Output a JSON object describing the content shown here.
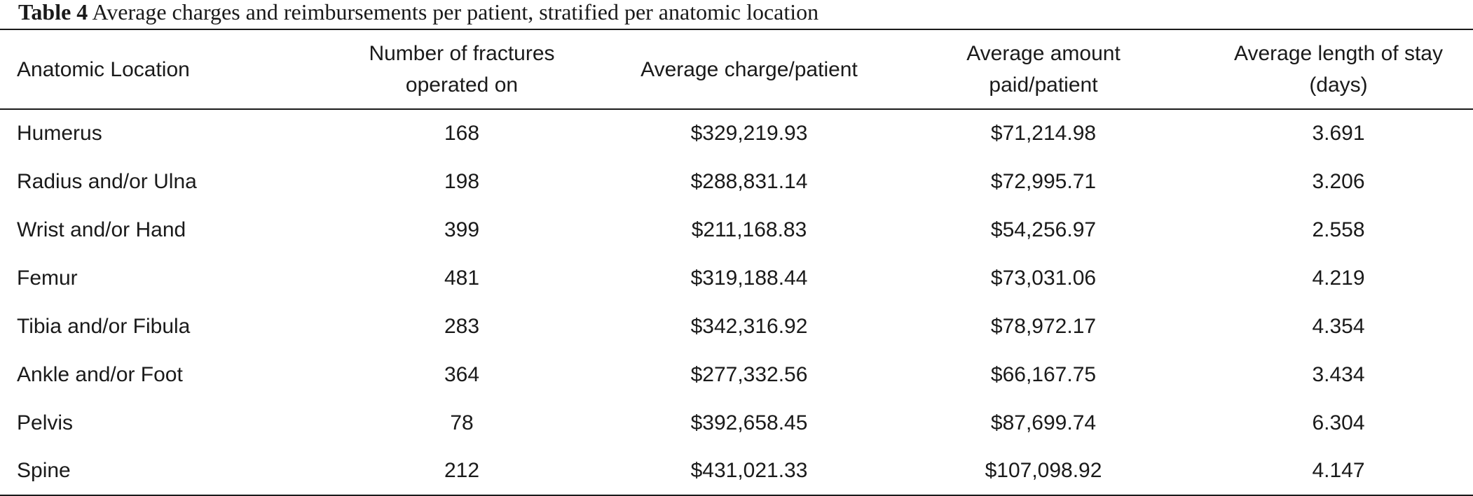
{
  "caption": {
    "label": "Table 4",
    "text": "Average charges and reimbursements per patient, stratified per anatomic location"
  },
  "table": {
    "headers": [
      {
        "line1": "Anatomic Location",
        "line2": ""
      },
      {
        "line1": "Number of fractures",
        "line2": "operated on"
      },
      {
        "line1": "Average charge/patient",
        "line2": ""
      },
      {
        "line1": "Average amount",
        "line2": "paid/patient"
      },
      {
        "line1": "Average length of stay",
        "line2": "(days)"
      }
    ],
    "rows": [
      [
        "Humerus",
        "168",
        "$329,219.93",
        "$71,214.98",
        "3.691"
      ],
      [
        "Radius and/or Ulna",
        "198",
        "$288,831.14",
        "$72,995.71",
        "3.206"
      ],
      [
        "Wrist and/or Hand",
        "399",
        "$211,168.83",
        "$54,256.97",
        "2.558"
      ],
      [
        "Femur",
        "481",
        "$319,188.44",
        "$73,031.06",
        "4.219"
      ],
      [
        "Tibia and/or Fibula",
        "283",
        "$342,316.92",
        "$78,972.17",
        "4.354"
      ],
      [
        "Ankle and/or Foot",
        "364",
        "$277,332.56",
        "$66,167.75",
        "3.434"
      ],
      [
        "Pelvis",
        "78",
        "$392,658.45",
        "$87,699.74",
        "6.304"
      ],
      [
        "Spine",
        "212",
        "$431,021.33",
        "$107,098.92",
        "4.147"
      ]
    ]
  }
}
